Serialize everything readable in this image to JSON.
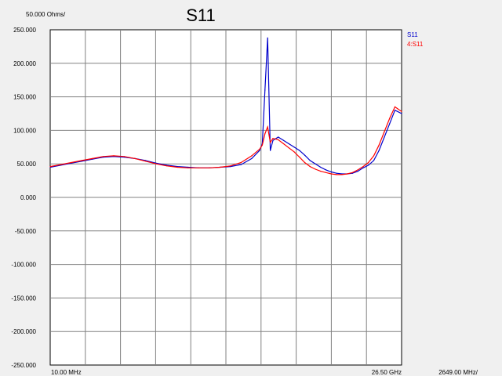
{
  "chart_data": {
    "type": "line",
    "title": "S11",
    "scale_label": "50.000 Ohms/",
    "x_start_label": "10.00 MHz",
    "x_stop_label": "26.50 GHz",
    "x_span_label": "2649.00 MHz/",
    "x_unit": "MHz",
    "xlim": [
      10,
      26500
    ],
    "ylim": [
      -250,
      250
    ],
    "grid": true,
    "legend_position": "top-right",
    "y_ticks": [
      "250.000",
      "200.000",
      "150.000",
      "100.000",
      "50.000",
      "0.000",
      "-50.000",
      "-100.000",
      "-150.000",
      "-200.000",
      "-250.000"
    ],
    "series": [
      {
        "name": "S11",
        "color": "#0000cc",
        "x": [
          10,
          800,
          1600,
          2400,
          3200,
          4000,
          4800,
          5600,
          6400,
          7200,
          8000,
          8800,
          9600,
          10400,
          11200,
          12000,
          12800,
          13600,
          14400,
          15200,
          15800,
          16000,
          16200,
          16400,
          16600,
          16800,
          17200,
          17600,
          18000,
          18400,
          18800,
          19200,
          19600,
          20000,
          20400,
          20800,
          21200,
          21600,
          22000,
          22400,
          22800,
          23200,
          23600,
          24000,
          24400,
          24800,
          25200,
          25600,
          26000,
          26500
        ],
        "y": [
          45,
          48,
          51,
          54,
          57,
          60,
          61,
          60,
          58,
          55,
          51,
          48,
          46,
          45,
          44,
          44,
          45,
          46,
          49,
          58,
          70,
          80,
          160,
          238,
          70,
          85,
          90,
          85,
          80,
          75,
          70,
          63,
          55,
          50,
          45,
          41,
          38,
          36,
          35,
          35,
          36,
          39,
          44,
          48,
          55,
          70,
          90,
          110,
          130,
          125
        ]
      },
      {
        "name": "4:S11",
        "color": "#ff0000",
        "x": [
          10,
          800,
          1600,
          2400,
          3200,
          4000,
          4800,
          5600,
          6400,
          7200,
          8000,
          8800,
          9600,
          10400,
          11200,
          12000,
          12800,
          13600,
          14400,
          15200,
          15800,
          16000,
          16200,
          16400,
          16600,
          16800,
          17200,
          17600,
          18000,
          18400,
          18800,
          19200,
          19600,
          20000,
          20400,
          20800,
          21200,
          21600,
          22000,
          22400,
          22800,
          23200,
          23600,
          24000,
          24400,
          24800,
          25200,
          25600,
          26000,
          26500
        ],
        "y": [
          46,
          49,
          52,
          55,
          58,
          61,
          62,
          61,
          58,
          54,
          50,
          47,
          45,
          44,
          44,
          44,
          45,
          47,
          52,
          62,
          72,
          78,
          95,
          105,
          82,
          88,
          86,
          80,
          74,
          68,
          60,
          52,
          46,
          42,
          39,
          37,
          35,
          34,
          34,
          35,
          37,
          41,
          46,
          52,
          62,
          78,
          98,
          118,
          135,
          128
        ]
      }
    ]
  }
}
